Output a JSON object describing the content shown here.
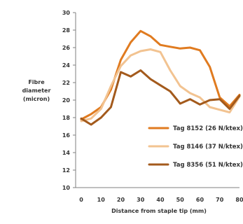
{
  "chart_data": {
    "type": "line",
    "xlabel": "Distance from staple tip (mm)",
    "ylabel_lines": [
      "Fibre",
      "diameter",
      "(micron)"
    ],
    "xlim": [
      0,
      80
    ],
    "ylim": [
      10,
      30
    ],
    "x_ticks": [
      0,
      10,
      20,
      30,
      40,
      50,
      60,
      70,
      80
    ],
    "y_ticks": [
      10,
      12,
      14,
      16,
      18,
      20,
      22,
      24,
      26,
      28,
      30
    ],
    "grid": false,
    "legend_position": "right",
    "series": [
      {
        "name": "Tag 8152 (26 N/ktex)",
        "color": "#e07b20",
        "x": [
          0,
          5,
          10,
          15,
          20,
          25,
          30,
          35,
          40,
          45,
          50,
          55,
          60,
          65,
          70,
          75,
          80
        ],
        "y": [
          17.8,
          18.4,
          19.2,
          21.2,
          24.6,
          26.6,
          27.9,
          27.3,
          26.3,
          26.1,
          25.9,
          26.0,
          25.7,
          23.8,
          20.3,
          19.3,
          20.6
        ]
      },
      {
        "name": "Tag 8146 (37 N/ktex)",
        "color": "#f2c391",
        "x": [
          0,
          5,
          10,
          15,
          20,
          25,
          30,
          35,
          40,
          45,
          50,
          55,
          60,
          65,
          70,
          75,
          80
        ],
        "y": [
          17.6,
          17.9,
          19.0,
          21.6,
          23.9,
          25.1,
          25.6,
          25.8,
          25.5,
          23.4,
          21.6,
          20.8,
          20.3,
          19.2,
          18.9,
          18.6,
          20.4
        ]
      },
      {
        "name": "Tag 8356 (51 N/ktex)",
        "color": "#a35a1c",
        "x": [
          0,
          5,
          10,
          15,
          20,
          25,
          30,
          35,
          40,
          45,
          50,
          55,
          60,
          65,
          70,
          75,
          80
        ],
        "y": [
          17.9,
          17.2,
          18.0,
          19.2,
          23.2,
          22.7,
          23.4,
          22.4,
          21.7,
          21.0,
          19.6,
          20.1,
          19.5,
          20.0,
          20.1,
          19.0,
          20.5
        ]
      }
    ]
  }
}
